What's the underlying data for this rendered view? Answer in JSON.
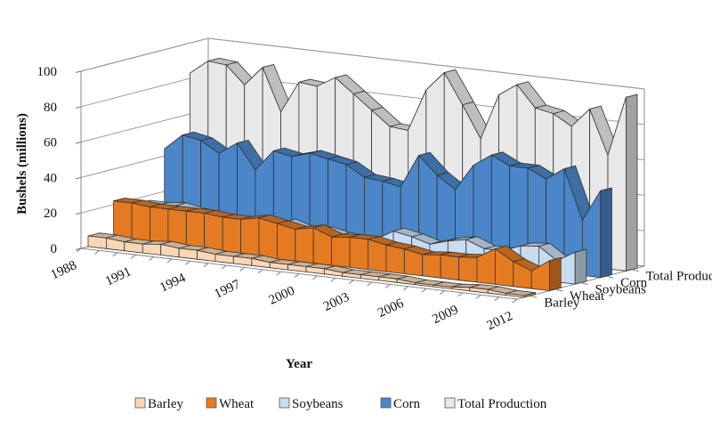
{
  "chart_data": {
    "type": "area",
    "variant": "3d-stacked-depth",
    "title": "",
    "xlabel": "Year",
    "ylabel": "Bushels (millions)",
    "ylim": [
      0,
      100
    ],
    "yticks": [
      0,
      20,
      40,
      60,
      80,
      100
    ],
    "xtick_labels": [
      "1988",
      "1991",
      "1994",
      "1997",
      "2000",
      "2003",
      "2006",
      "2009",
      "2012"
    ],
    "years": [
      1988,
      1989,
      1990,
      1991,
      1992,
      1993,
      1994,
      1995,
      1996,
      1997,
      1998,
      1999,
      2000,
      2001,
      2002,
      2003,
      2004,
      2005,
      2006,
      2007,
      2008,
      2009,
      2010,
      2011,
      2012
    ],
    "series": [
      {
        "name": "Barley",
        "color": "#f9d7b5",
        "values": [
          6,
          6,
          5,
          5,
          6,
          5,
          5,
          4,
          4,
          4,
          3,
          3,
          3,
          3,
          2,
          2,
          2,
          2,
          1,
          1,
          1,
          2,
          2,
          1,
          1
        ]
      },
      {
        "name": "Wheat",
        "color": "#e47b22",
        "values": [
          22,
          22,
          21,
          21,
          21,
          21,
          20,
          20,
          22,
          20,
          18,
          20,
          16,
          17,
          17,
          15,
          14,
          12,
          13,
          13,
          14,
          20,
          14,
          10,
          17
        ]
      },
      {
        "name": "Soybeans",
        "color": "#c8dcf0",
        "values": [
          17,
          17,
          18,
          16,
          15,
          12,
          15,
          12,
          16,
          13,
          14,
          12,
          11,
          12,
          18,
          16,
          13,
          16,
          18,
          14,
          14,
          18,
          19,
          12,
          18
        ]
      },
      {
        "name": "Corn",
        "color": "#4a86c8",
        "values": [
          44,
          53,
          51,
          45,
          52,
          38,
          50,
          48,
          51,
          49,
          47,
          41,
          40,
          38,
          57,
          47,
          40,
          55,
          62,
          57,
          57,
          52,
          59,
          31,
          49
        ]
      },
      {
        "name": "Total Production",
        "color": "#e8e8e8",
        "values": [
          83,
          91,
          90,
          80,
          91,
          67,
          85,
          84,
          90,
          82,
          74,
          66,
          65,
          89,
          100,
          83,
          65,
          91,
          98,
          86,
          84,
          78,
          89,
          64,
          98
        ]
      }
    ],
    "legend": {
      "position": "bottom",
      "entries": [
        "Barley",
        "Wheat",
        "Soybeans",
        "Corn",
        "Total Production"
      ]
    }
  }
}
